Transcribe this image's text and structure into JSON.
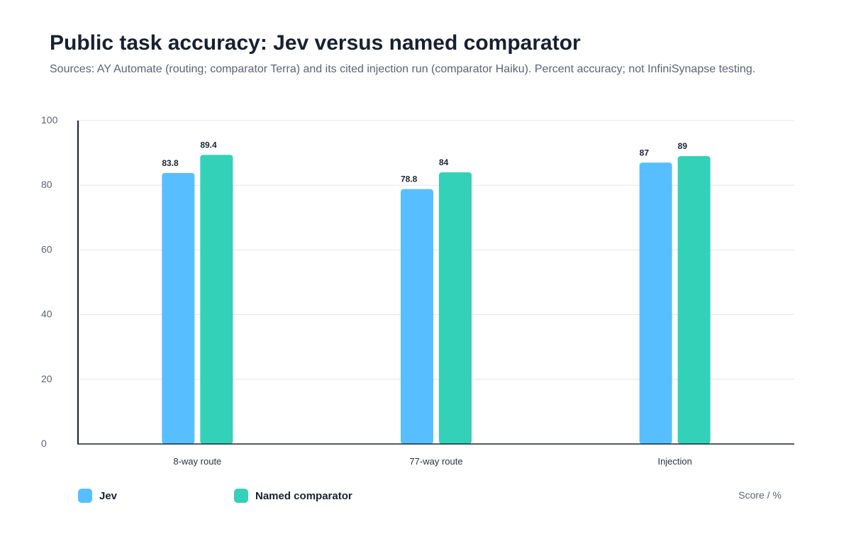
{
  "chart_data": {
    "type": "bar",
    "title": "Public task accuracy: Jev versus named comparator",
    "subtitle": "Sources: AY Automate (routing; comparator Terra) and its cited injection run (comparator Haiku). Percent accuracy; not InfiniSynapse testing.",
    "categories": [
      "8-way route",
      "77-way route",
      "Injection"
    ],
    "series": [
      {
        "name": "Jev",
        "values": [
          83.8,
          78.8,
          87
        ],
        "labels": [
          "83.8",
          "78.8",
          "87"
        ],
        "color": "#57BFFF"
      },
      {
        "name": "Named comparator",
        "values": [
          89.4,
          84,
          89
        ],
        "labels": [
          "89.4",
          "84",
          "89"
        ],
        "color": "#33D1B8"
      }
    ],
    "ylim": [
      0,
      100
    ],
    "yticks": [
      "0",
      "20",
      "40",
      "60",
      "80",
      "100"
    ],
    "ytick_values": [
      0,
      20,
      40,
      60,
      80,
      100
    ],
    "xlabel": "",
    "ylabel": "",
    "unit_label": "Score / %",
    "grid": true,
    "legend_position": "bottom-left"
  }
}
